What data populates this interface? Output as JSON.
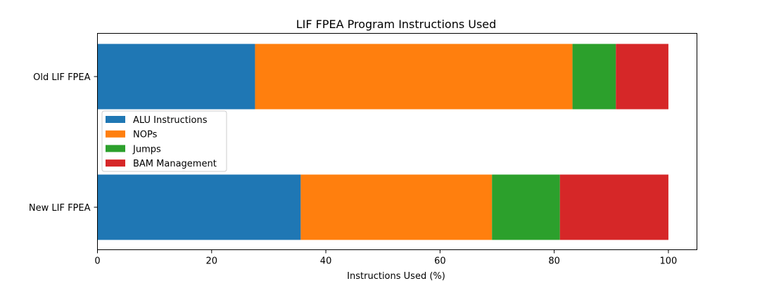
{
  "chart_data": {
    "type": "bar",
    "orientation": "horizontal",
    "stacked": true,
    "title": "LIF FPEA Program Instructions Used",
    "xlabel": "Instructions Used (%)",
    "ylabel": "",
    "xlim": [
      0,
      105
    ],
    "x_ticks": [
      0,
      20,
      40,
      60,
      80,
      100
    ],
    "categories": [
      "Old LIF FPEA",
      "New LIF FPEA"
    ],
    "series": [
      {
        "name": "ALU Instructions",
        "color": "#1f77b4",
        "values": [
          27.6,
          35.6
        ]
      },
      {
        "name": "NOPs",
        "color": "#ff7f0e",
        "values": [
          55.6,
          33.5
        ]
      },
      {
        "name": "Jumps",
        "color": "#2ca02c",
        "values": [
          7.6,
          11.9
        ]
      },
      {
        "name": "BAM Management",
        "color": "#d62728",
        "values": [
          9.2,
          19.0
        ]
      }
    ],
    "legend_position": "center-left",
    "grid": false
  }
}
